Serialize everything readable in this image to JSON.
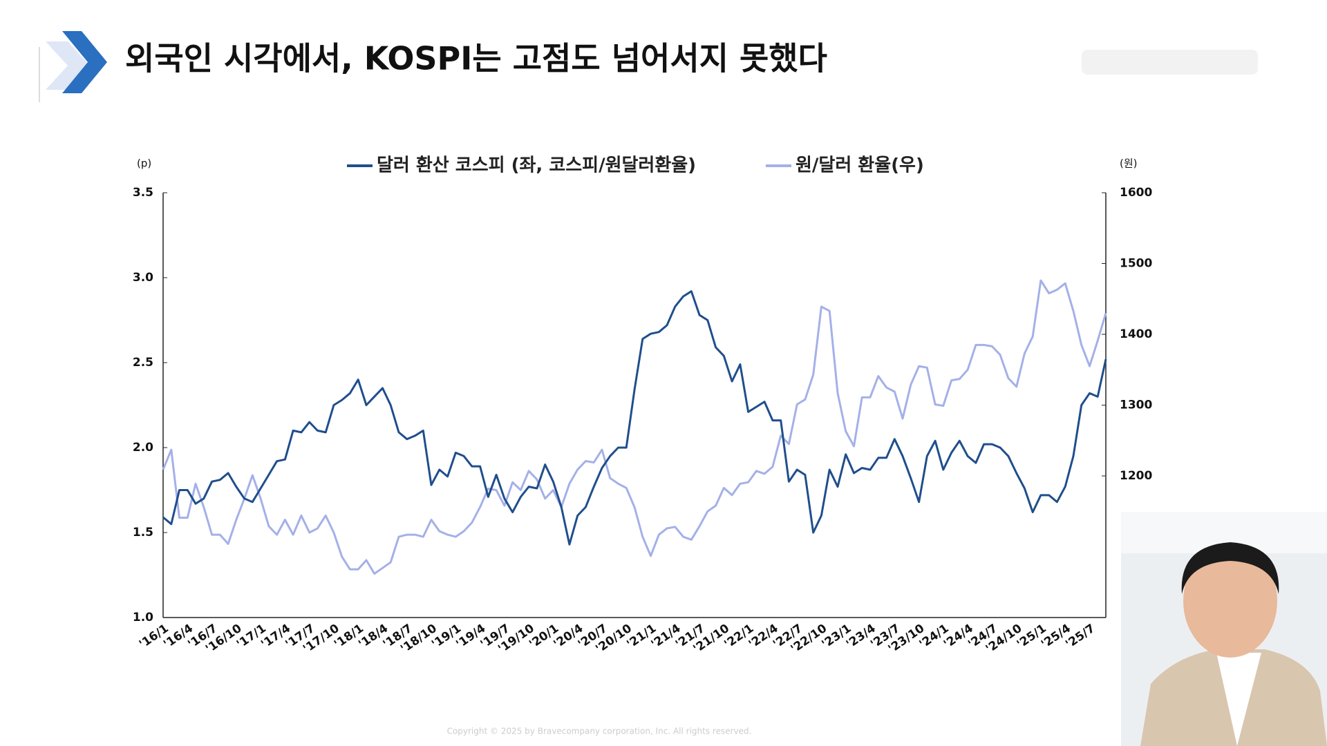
{
  "chart_data": {
    "type": "line",
    "title": "외국인 시각에서, KOSPI는 고점도 넘어서지 못했다",
    "y_unit": "(p)",
    "y2_unit": "(원)",
    "copyright": "Copyright © 2025 by Bravecompany corporation, Inc. All rights reserved.",
    "categories": [
      "'16/1",
      null,
      null,
      "'16/4",
      null,
      null,
      "'16/7",
      null,
      null,
      "'16/10",
      null,
      null,
      "'17/1",
      null,
      null,
      "'17/4",
      null,
      null,
      "'17/7",
      null,
      null,
      "'17/10",
      null,
      null,
      "'18/1",
      null,
      null,
      "'18/4",
      null,
      null,
      "'18/7",
      null,
      null,
      "'18/10",
      null,
      null,
      "'19/1",
      null,
      null,
      "'19/4",
      null,
      null,
      "'19/7",
      null,
      null,
      "'19/10",
      null,
      null,
      "'20/1",
      null,
      null,
      "'20/4",
      null,
      null,
      "'20/7",
      null,
      null,
      "'20/10",
      null,
      null,
      "'21/1",
      null,
      null,
      "'21/4",
      null,
      null,
      "'21/7",
      null,
      null,
      "'21/10",
      null,
      null,
      "'22/1",
      null,
      null,
      "'22/4",
      null,
      null,
      "'22/7",
      null,
      null,
      "'22/10",
      null,
      null,
      "'23/1",
      null,
      null,
      "'23/4",
      null,
      null,
      "'23/7",
      null,
      null,
      "'23/10",
      null,
      null,
      "'24/1",
      null,
      null,
      "'24/4",
      null,
      null,
      "'24/7",
      null,
      null,
      "'24/10",
      null,
      null,
      "'25/1",
      null,
      null,
      "'25/4",
      null,
      null,
      "'25/7",
      null,
      null
    ],
    "series": [
      {
        "name": "달러 환산 코스피 (좌, 코스피/원달러환율)",
        "color": "#1f4e8c",
        "axis": "y",
        "values": [
          1.59,
          1.55,
          1.75,
          1.75,
          1.67,
          1.7,
          1.8,
          1.81,
          1.85,
          1.77,
          1.7,
          1.68,
          1.76,
          1.84,
          1.92,
          1.93,
          2.1,
          2.09,
          2.15,
          2.1,
          2.09,
          2.25,
          2.28,
          2.32,
          2.4,
          2.25,
          2.3,
          2.35,
          2.25,
          2.09,
          2.05,
          2.07,
          2.1,
          1.78,
          1.87,
          1.83,
          1.97,
          1.95,
          1.89,
          1.89,
          1.71,
          1.84,
          1.7,
          1.62,
          1.71,
          1.77,
          1.76,
          1.9,
          1.8,
          1.65,
          1.43,
          1.6,
          1.65,
          1.77,
          1.88,
          1.95,
          2.0,
          2.0,
          2.34,
          2.64,
          2.67,
          2.68,
          2.72,
          2.83,
          2.89,
          2.92,
          2.78,
          2.75,
          2.59,
          2.54,
          2.39,
          2.49,
          2.21,
          2.24,
          2.27,
          2.16,
          2.16,
          1.8,
          1.87,
          1.84,
          1.5,
          1.6,
          1.87,
          1.77,
          1.96,
          1.85,
          1.88,
          1.87,
          1.94,
          1.94,
          2.05,
          1.95,
          1.82,
          1.68,
          1.95,
          2.04,
          1.87,
          1.97,
          2.04,
          1.95,
          1.91,
          2.02,
          2.02,
          2.0,
          1.95,
          1.85,
          1.76,
          1.62,
          1.72,
          1.72,
          1.68,
          1.77,
          1.95,
          2.25,
          2.32,
          2.3,
          2.52
        ]
      },
      {
        "name": "원/달러 환율(우)",
        "color": "#a4b0e8",
        "axis": "y2",
        "values": [
          1209,
          1237,
          1141,
          1141,
          1189,
          1156,
          1117,
          1117,
          1104,
          1138,
          1168,
          1201,
          1168,
          1129,
          1117,
          1138,
          1117,
          1144,
          1120,
          1126,
          1144,
          1120,
          1086,
          1068,
          1068,
          1081,
          1062,
          1070,
          1078,
          1114,
          1117,
          1117,
          1114,
          1138,
          1122,
          1117,
          1114,
          1122,
          1134,
          1156,
          1182,
          1180,
          1158,
          1191,
          1180,
          1207,
          1195,
          1168,
          1180,
          1156,
          1189,
          1209,
          1221,
          1219,
          1237,
          1197,
          1189,
          1183,
          1156,
          1114,
          1087,
          1117,
          1126,
          1128,
          1114,
          1110,
          1129,
          1150,
          1158,
          1183,
          1173,
          1189,
          1191,
          1207,
          1203,
          1213,
          1257,
          1245,
          1301,
          1308,
          1343,
          1439,
          1433,
          1317,
          1263,
          1242,
          1311,
          1311,
          1341,
          1325,
          1319,
          1281,
          1329,
          1355,
          1353,
          1301,
          1299,
          1335,
          1337,
          1350,
          1385,
          1385,
          1383,
          1371,
          1338,
          1326,
          1373,
          1397,
          1476,
          1458,
          1463,
          1472,
          1433,
          1385,
          1355,
          1391,
          1430
        ]
      }
    ],
    "ylim": [
      1.0,
      3.5
    ],
    "yticks": [
      {
        "value": 1,
        "label": "1.0"
      },
      1.5,
      {
        "value": 2,
        "label": "2.0"
      },
      2.5,
      {
        "value": 3,
        "label": "3.0"
      },
      3.5
    ],
    "y2lim": [
      1000,
      1600
    ],
    "y2ticks": [
      1200,
      1300,
      1400,
      1500,
      1600
    ],
    "legend": "top"
  }
}
